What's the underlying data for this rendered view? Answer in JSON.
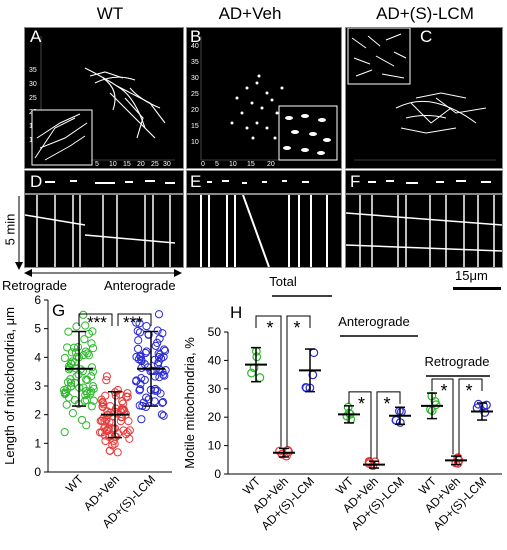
{
  "columns": [
    "WT",
    "AD+Veh",
    "AD+(S)-LCM"
  ],
  "panel_letters": [
    "A",
    "B",
    "C",
    "D",
    "E",
    "F",
    "G",
    "H"
  ],
  "kymo": {
    "ylabel": "5 min",
    "left_label": "Retrograde",
    "right_label": "Anterograde",
    "scale_label": "15μm"
  },
  "chart_data": [
    {
      "type": "scatter",
      "panel": "G",
      "ylabel": "Length of mitochondria, μm",
      "ylim": [
        0,
        6
      ],
      "yticks": [
        0,
        1,
        2,
        3,
        4,
        5,
        6
      ],
      "categories": [
        "WT",
        "AD+Veh",
        "AD+(S)-LCM"
      ],
      "colors": [
        "#2db82d",
        "#e83a3a",
        "#2a2ad6"
      ],
      "mean": [
        3.6,
        2.0,
        3.6
      ],
      "sd": [
        1.3,
        0.8,
        1.3
      ],
      "significance": [
        "***",
        "***"
      ]
    },
    {
      "type": "scatter",
      "panel": "H",
      "ylabel": "Motile mitochondria, %",
      "ylim": [
        0,
        50
      ],
      "yticks": [
        0,
        10,
        20,
        30,
        40,
        50
      ],
      "groups": [
        {
          "label": "Total",
          "mean": [
            38.5,
            7.5,
            36.5
          ],
          "sd": [
            6,
            1.5,
            7.5
          ]
        },
        {
          "label": "Anterograde",
          "mean": [
            21,
            3.3,
            20.5
          ],
          "sd": [
            3,
            1.2,
            3
          ]
        },
        {
          "label": "Retrograde",
          "mean": [
            24,
            4.8,
            22
          ],
          "sd": [
            4.5,
            1.5,
            3
          ]
        }
      ],
      "categories": [
        "WT",
        "AD+Veh",
        "AD+(S)-LCM"
      ],
      "colors": [
        "#2db82d",
        "#e83a3a",
        "#2a2ad6"
      ],
      "significance": [
        "*",
        "*"
      ]
    }
  ]
}
